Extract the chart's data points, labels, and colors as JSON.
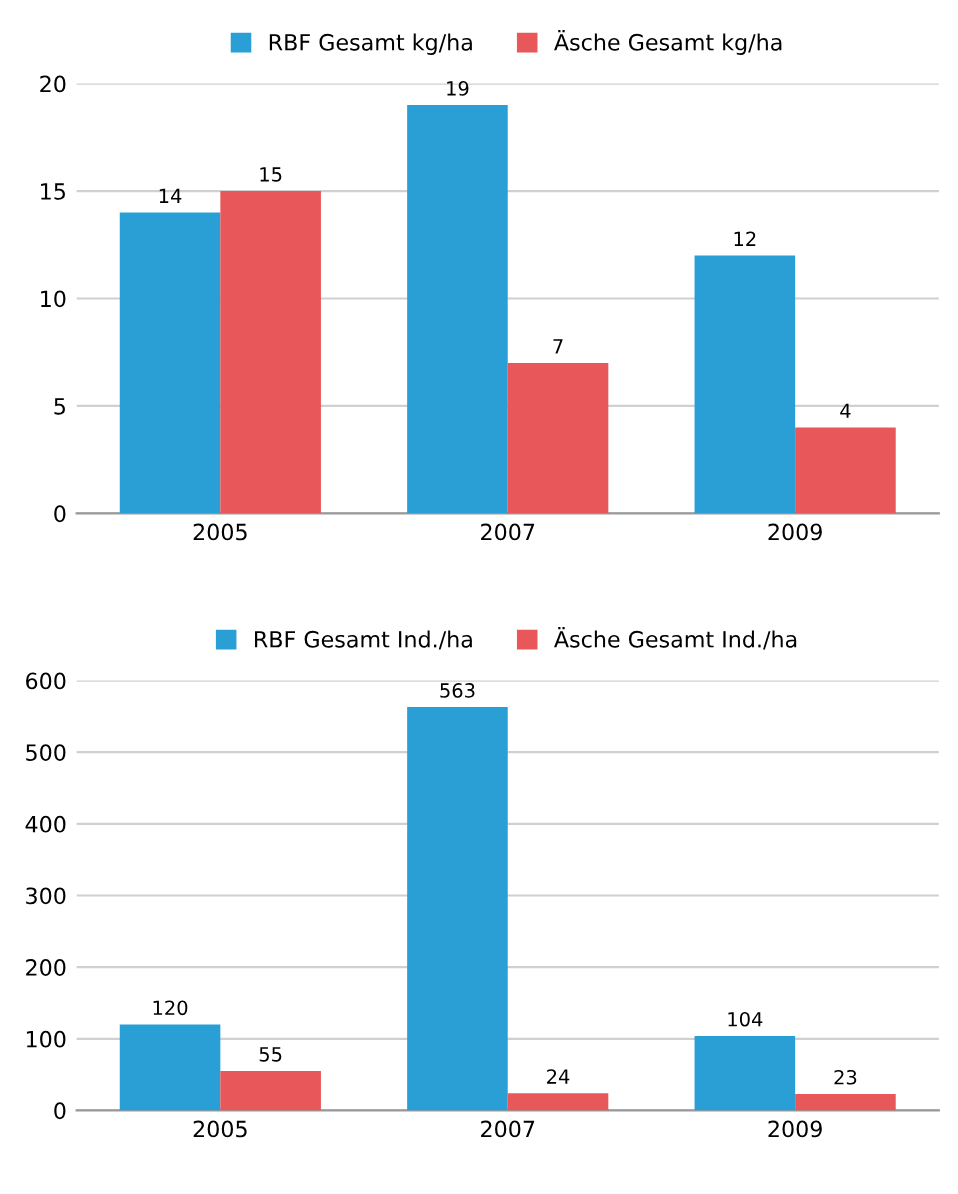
{
  "chart_data": [
    {
      "type": "bar",
      "categories": [
        "2005",
        "2007",
        "2009"
      ],
      "series": [
        {
          "name": "RBF Gesamt kg/ha",
          "color": "#2a9fd6",
          "values": [
            14,
            19,
            12
          ]
        },
        {
          "name": "Äsche Gesamt kg/ha",
          "color": "#e8585a",
          "values": [
            15,
            7,
            4
          ]
        }
      ],
      "ylim": [
        0,
        20
      ],
      "yticks": [
        0,
        5,
        10,
        15,
        20
      ],
      "grid": "y",
      "legend": "top",
      "data_labels": true
    },
    {
      "type": "bar",
      "categories": [
        "2005",
        "2007",
        "2009"
      ],
      "series": [
        {
          "name": "RBF Gesamt Ind./ha",
          "color": "#2a9fd6",
          "values": [
            120,
            563,
            104
          ]
        },
        {
          "name": "Äsche Gesamt Ind./ha",
          "color": "#e8585a",
          "values": [
            55,
            24,
            23
          ]
        }
      ],
      "ylim": [
        0,
        600
      ],
      "yticks": [
        0,
        100,
        200,
        300,
        400,
        500,
        600
      ],
      "grid": "y",
      "legend": "top",
      "data_labels": true
    }
  ]
}
